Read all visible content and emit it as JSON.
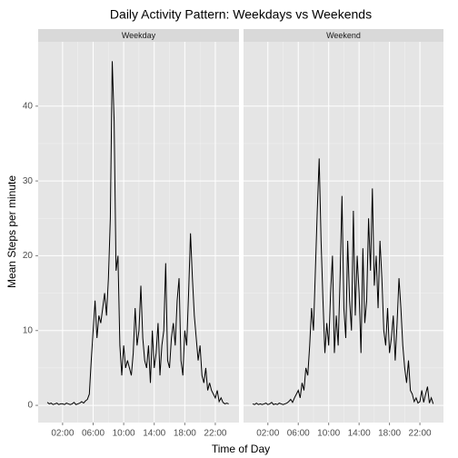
{
  "chart_data": {
    "type": "line",
    "title": "Daily Activity Pattern: Weekdays vs Weekends",
    "xlabel": "Time of Day",
    "ylabel": "Mean Steps per minute",
    "color": "#000000",
    "grid": true,
    "xlim": [
      -1.2,
      25.1
    ],
    "ylim": [
      -2.3,
      48.6
    ],
    "xticks": [
      {
        "value": 2,
        "label": "02:00"
      },
      {
        "value": 6,
        "label": "06:00"
      },
      {
        "value": 10,
        "label": "10:00"
      },
      {
        "value": 14,
        "label": "14:00"
      },
      {
        "value": 18,
        "label": "18:00"
      },
      {
        "value": 22,
        "label": "22:00"
      }
    ],
    "yticks": [
      0,
      10,
      20,
      30,
      40
    ],
    "x": [
      0,
      0.25,
      0.5,
      0.75,
      1,
      1.25,
      1.5,
      1.75,
      2,
      2.25,
      2.5,
      2.75,
      3,
      3.25,
      3.5,
      3.75,
      4,
      4.25,
      4.5,
      4.75,
      5,
      5.25,
      5.5,
      5.75,
      6,
      6.25,
      6.5,
      6.75,
      7,
      7.25,
      7.5,
      7.75,
      8,
      8.25,
      8.5,
      8.75,
      9,
      9.25,
      9.5,
      9.75,
      10,
      10.25,
      10.5,
      10.75,
      11,
      11.25,
      11.5,
      11.75,
      12,
      12.25,
      12.5,
      12.75,
      13,
      13.25,
      13.5,
      13.75,
      14,
      14.25,
      14.5,
      14.75,
      15,
      15.25,
      15.5,
      15.75,
      16,
      16.25,
      16.5,
      16.75,
      17,
      17.25,
      17.5,
      17.75,
      18,
      18.25,
      18.5,
      18.75,
      19,
      19.25,
      19.5,
      19.75,
      20,
      20.25,
      20.5,
      20.75,
      21,
      21.25,
      21.5,
      21.75,
      22,
      22.25,
      22.5,
      22.75,
      23,
      23.25,
      23.5,
      23.75
    ],
    "facets": [
      {
        "name": "Weekday",
        "values": [
          0.4,
          0.2,
          0.3,
          0.1,
          0.2,
          0.3,
          0.1,
          0.2,
          0.2,
          0.1,
          0.3,
          0.2,
          0.1,
          0.2,
          0.4,
          0.1,
          0.2,
          0.3,
          0.5,
          0.3,
          0.6,
          0.8,
          1.5,
          6,
          10,
          14,
          9,
          12,
          11,
          13,
          15,
          12,
          17,
          25,
          46,
          38,
          18,
          20,
          8,
          4,
          8,
          5,
          6,
          5,
          4,
          7,
          13,
          8,
          10,
          16,
          9,
          6,
          5,
          8,
          3,
          10,
          5,
          7,
          11,
          4,
          8,
          10,
          19,
          6,
          5,
          9,
          11,
          8,
          14,
          17,
          6,
          4,
          10,
          8,
          15,
          23,
          17,
          12,
          9,
          6,
          8,
          4,
          3,
          5,
          2,
          3,
          2,
          1.5,
          1,
          2,
          0.5,
          1,
          0.4,
          0.2,
          0.3,
          0.2
        ]
      },
      {
        "name": "Weekend",
        "values": [
          0.2,
          0.1,
          0.3,
          0.1,
          0.2,
          0.1,
          0.2,
          0.3,
          0.1,
          0.2,
          0.4,
          0.1,
          0.2,
          0.1,
          0.3,
          0.2,
          0.1,
          0.2,
          0.3,
          0.5,
          0.8,
          0.4,
          1,
          1.5,
          2,
          1,
          3,
          2,
          5,
          4,
          8,
          13,
          10,
          18,
          26,
          33,
          22,
          14,
          7,
          11,
          8,
          15,
          20,
          7,
          12,
          8,
          17,
          28,
          13,
          9,
          22,
          14,
          10,
          26,
          12,
          20,
          15,
          7,
          21,
          11,
          14,
          25,
          18,
          29,
          16,
          20,
          13,
          22,
          17,
          10,
          8,
          13,
          7,
          9,
          12,
          6,
          11,
          17,
          13,
          8,
          5,
          3,
          6,
          2,
          1.5,
          0.5,
          1,
          0.3,
          0.5,
          2,
          0.4,
          1.5,
          2.5,
          0.3,
          1,
          0.2
        ]
      }
    ]
  }
}
